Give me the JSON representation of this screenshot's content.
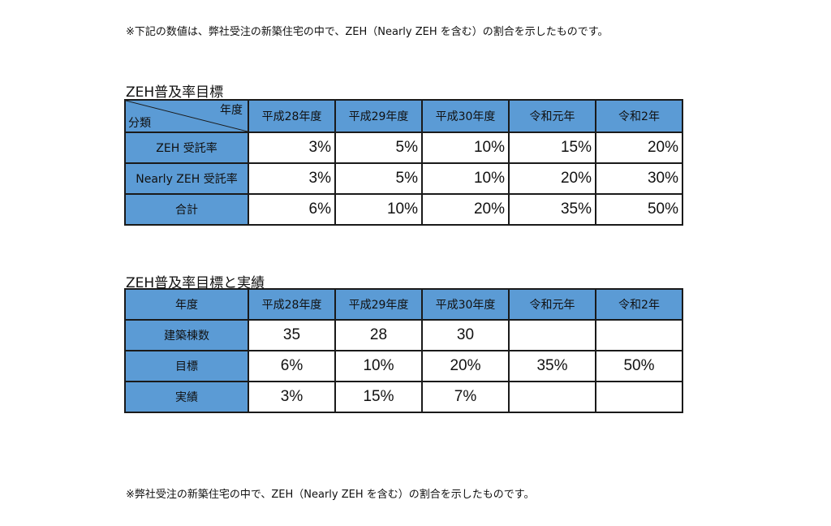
{
  "note_top": "※下記の数値は、弊社受注の新築住宅の中で、ZEH（Nearly ZEH を含む）の割合を示したものです。",
  "table1": {
    "title": "ZEH普及率目標",
    "corner_top": "年度",
    "corner_bottom": "分類",
    "columns": [
      "平成28年度",
      "平成29年度",
      "平成30年度",
      "令和元年",
      "令和2年"
    ],
    "rows": [
      {
        "label": "ZEH 受託率",
        "values": [
          "3%",
          "5%",
          "10%",
          "15%",
          "20%"
        ]
      },
      {
        "label": "Nearly ZEH 受託率",
        "values": [
          "3%",
          "5%",
          "10%",
          "20%",
          "30%"
        ]
      },
      {
        "label": "合計",
        "values": [
          "6%",
          "10%",
          "20%",
          "35%",
          "50%"
        ]
      }
    ]
  },
  "table2": {
    "title": "ZEH普及率目標と実績",
    "corner": "年度",
    "columns": [
      "平成28年度",
      "平成29年度",
      "平成30年度",
      "令和元年",
      "令和2年"
    ],
    "rows": [
      {
        "label": "建築棟数",
        "values": [
          "35",
          "28",
          "30",
          "",
          ""
        ]
      },
      {
        "label": "目標",
        "values": [
          "6%",
          "10%",
          "20%",
          "35%",
          "50%"
        ]
      },
      {
        "label": "実績",
        "values": [
          "3%",
          "15%",
          "7%",
          "",
          ""
        ]
      }
    ]
  },
  "note_bottom": "※弊社受注の新築住宅の中で、ZEH（Nearly ZEH を含む）の割合を示したものです。",
  "colors": {
    "header_fill": "#5b9bd5",
    "border": "#1a1a1a"
  }
}
